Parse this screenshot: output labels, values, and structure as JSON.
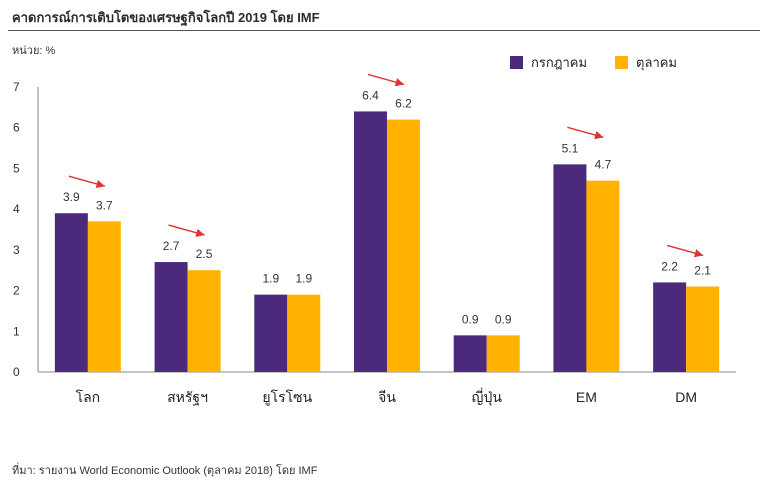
{
  "title": "คาดการณ์การเติบโตของเศรษฐกิจโลกปี 2019 โดย IMF",
  "unit_label": "หน่วย: %",
  "source": "ที่มา: รายงาน World Economic Outlook (ตุลาคม 2018) โดย IMF",
  "colors": {
    "july": "#4b2a7b",
    "october": "#ffb300",
    "arrow": "#e03030",
    "axis": "#888888"
  },
  "chart_data": {
    "type": "bar",
    "categories": [
      "โลก",
      "สหรัฐฯ",
      "ยูโรโซน",
      "จีน",
      "ญี่ปุ่น",
      "EM",
      "DM"
    ],
    "series": [
      {
        "name": "กรกฎาคม",
        "values": [
          3.9,
          2.7,
          1.9,
          6.4,
          0.9,
          5.1,
          2.2
        ]
      },
      {
        "name": "ตุลาคม",
        "values": [
          3.7,
          2.5,
          1.9,
          6.2,
          0.9,
          4.7,
          2.1
        ]
      }
    ],
    "ylim": [
      0,
      7
    ],
    "yticks": [
      0,
      1,
      2,
      3,
      4,
      5,
      6,
      7
    ],
    "legend_position": "top-right",
    "downgrade_arrows": [
      0,
      1,
      3,
      5,
      6
    ]
  }
}
